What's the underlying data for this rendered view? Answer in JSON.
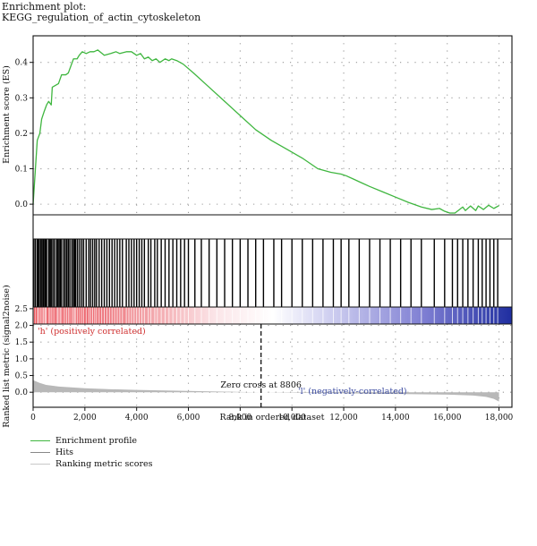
{
  "title": {
    "line1": "Enrichment plot:",
    "line2": "KEGG_regulation_of_actin_cytoskeleton"
  },
  "colors": {
    "profile": "#3fb63f",
    "hits": "#000000",
    "metric": "#b8b8b8",
    "positive": "#d03030",
    "negative": "#3a4aa0",
    "grid": "#9a9a9a"
  },
  "chart_data": {
    "type": "line",
    "x_range": [
      0,
      18500
    ],
    "xlabel": "Rank in ordered dataset",
    "x_ticks": [
      0,
      2000,
      4000,
      6000,
      8000,
      10000,
      12000,
      14000,
      16000,
      18000
    ],
    "x_tick_labels": [
      "0",
      "2,000",
      "4,000",
      "6,000",
      "8,000",
      "10,000",
      "12,000",
      "14,000",
      "16,000",
      "18,000"
    ],
    "panels": {
      "enrichment": {
        "ylabel": "Enrichment score (ES)",
        "ylim": [
          -0.03,
          0.475
        ],
        "y_ticks": [
          0.0,
          0.1,
          0.2,
          0.3,
          0.4
        ],
        "y_tick_labels": [
          "0.0",
          "0.1",
          "0.2",
          "0.3",
          "0.4"
        ],
        "series": [
          {
            "name": "Enrichment profile",
            "x": [
              0,
              80,
              160,
              260,
              330,
              420,
              520,
              600,
              700,
              740,
              860,
              980,
              1100,
              1260,
              1360,
              1560,
              1700,
              1780,
              1900,
              2050,
              2200,
              2350,
              2500,
              2750,
              3000,
              3200,
              3350,
              3600,
              3800,
              4000,
              4150,
              4300,
              4450,
              4600,
              4750,
              4900,
              5100,
              5250,
              5350,
              5550,
              5800,
              6200,
              6800,
              7400,
              8000,
              8600,
              9200,
              9800,
              10400,
              11000,
              11500,
              11900,
              12100,
              12400,
              12700,
              13000,
              13500,
              14000,
              14500,
              15000,
              15400,
              15700,
              15900,
              16100,
              16300,
              16600,
              16700,
              16900,
              17100,
              17200,
              17400,
              17600,
              17800,
              18000
            ],
            "y": [
              0.0,
              0.09,
              0.18,
              0.2,
              0.24,
              0.26,
              0.28,
              0.29,
              0.28,
              0.33,
              0.335,
              0.34,
              0.365,
              0.365,
              0.37,
              0.41,
              0.41,
              0.42,
              0.43,
              0.425,
              0.43,
              0.43,
              0.435,
              0.42,
              0.425,
              0.43,
              0.425,
              0.43,
              0.43,
              0.42,
              0.425,
              0.41,
              0.415,
              0.405,
              0.41,
              0.4,
              0.41,
              0.405,
              0.41,
              0.405,
              0.395,
              0.37,
              0.33,
              0.29,
              0.25,
              0.21,
              0.18,
              0.155,
              0.13,
              0.1,
              0.09,
              0.085,
              0.08,
              0.07,
              0.06,
              0.05,
              0.035,
              0.02,
              0.005,
              -0.008,
              -0.015,
              -0.012,
              -0.02,
              -0.025,
              -0.025,
              -0.008,
              -0.018,
              -0.005,
              -0.018,
              -0.005,
              -0.015,
              -0.003,
              -0.012,
              -0.004
            ]
          }
        ]
      },
      "hits": {
        "name": "Hits",
        "x": [
          20,
          80,
          150,
          200,
          240,
          300,
          350,
          400,
          450,
          480,
          520,
          600,
          650,
          700,
          760,
          820,
          900,
          950,
          1000,
          1050,
          1100,
          1180,
          1240,
          1300,
          1360,
          1420,
          1500,
          1560,
          1600,
          1650,
          1720,
          1800,
          1880,
          1950,
          2050,
          2150,
          2220,
          2300,
          2380,
          2450,
          2550,
          2650,
          2750,
          2850,
          2950,
          3050,
          3150,
          3250,
          3350,
          3450,
          3600,
          3700,
          3800,
          3900,
          4000,
          4100,
          4200,
          4300,
          4450,
          4550,
          4700,
          4800,
          4950,
          5100,
          5250,
          5400,
          5550,
          5700,
          5850,
          6000,
          6250,
          6500,
          6800,
          7100,
          7400,
          7700,
          8000,
          8300,
          8600,
          8900,
          9300,
          9600,
          10000,
          10400,
          10800,
          11200,
          11600,
          11900,
          12200,
          12600,
          13000,
          13400,
          13800,
          14200,
          14600,
          15000,
          15500,
          15900,
          16200,
          16400,
          16600,
          16800,
          17000,
          17200,
          17350,
          17500,
          17650,
          17800,
          17950
        ]
      },
      "ranked_metric": {
        "ylabel": "Ranked list metric (signal2noise)",
        "ylim": [
          -0.45,
          2.55
        ],
        "y_ticks": [
          0.0,
          0.5,
          1.0,
          1.5,
          2.0,
          2.5
        ],
        "y_tick_labels": [
          "0.0",
          "0.5",
          "1.0",
          "1.5",
          "2.0",
          "2.5"
        ],
        "series": [
          {
            "name": "Ranking metric scores",
            "x": [
              0,
              250,
              500,
              1000,
              2000,
              3000,
              4000,
              6000,
              8000,
              8806,
              10000,
              12000,
              14000,
              16000,
              17000,
              17500,
              17800,
              18000
            ],
            "y": [
              0.36,
              0.28,
              0.22,
              0.17,
              0.12,
              0.09,
              0.07,
              0.04,
              0.01,
              0.0,
              -0.01,
              -0.03,
              -0.05,
              -0.07,
              -0.1,
              -0.14,
              -0.2,
              -0.28
            ]
          }
        ],
        "zero_cross": 8806
      }
    },
    "annotations": {
      "zero_cross_label": "Zero cross at 8806",
      "positive_label": "'h' (positively correlated)",
      "negative_label": "'l' (negatively-correlated)"
    },
    "legend": {
      "placement": "bottom-left",
      "entries": [
        "Enrichment profile",
        "Hits",
        "Ranking metric scores"
      ]
    },
    "grid": true
  }
}
